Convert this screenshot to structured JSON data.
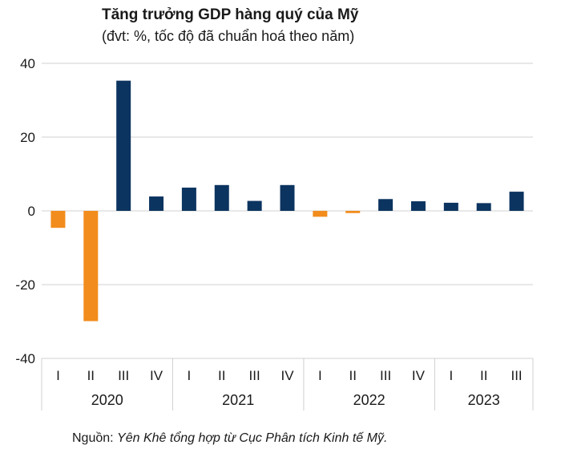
{
  "chart_data": {
    "type": "bar",
    "title": "Tăng trưởng GDP hàng quý của Mỹ",
    "subtitle": "(đvt: %, tốc độ đã chuẩn hoá theo năm)",
    "categories": [
      "I",
      "II",
      "III",
      "IV",
      "I",
      "II",
      "III",
      "IV",
      "I",
      "II",
      "III",
      "IV",
      "I",
      "II",
      "III"
    ],
    "groups": [
      {
        "label": "2020",
        "count": 4
      },
      {
        "label": "2021",
        "count": 4
      },
      {
        "label": "2022",
        "count": 4
      },
      {
        "label": "2023",
        "count": 3
      }
    ],
    "values": [
      -4.6,
      -29.9,
      35.3,
      3.9,
      6.3,
      7.0,
      2.7,
      7.0,
      -1.6,
      -0.6,
      3.2,
      2.6,
      2.2,
      2.1,
      5.2
    ],
    "ylim": [
      -40,
      40
    ],
    "yticks": [
      40,
      20,
      0,
      -20,
      -40
    ],
    "grid": true,
    "colors": {
      "positive": "#0c3460",
      "negative": "#f28c1c"
    }
  },
  "source": {
    "prefix": "Nguồn: ",
    "text": "Yên Khê tổng hợp từ Cục Phân tích Kinh tế Mỹ."
  }
}
